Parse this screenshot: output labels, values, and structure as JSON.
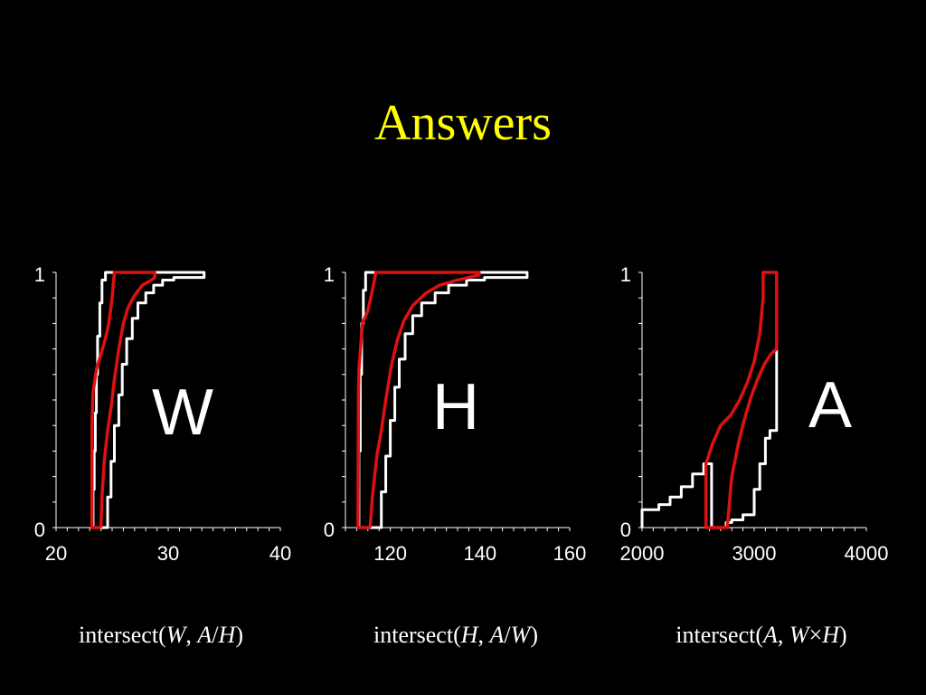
{
  "slide": {
    "title": "Answers",
    "colors": {
      "background": "#000000",
      "title": "#ffff00",
      "cdf": "#ffffff",
      "bounds": "#dd1111"
    }
  },
  "chart_data": [
    {
      "type": "line",
      "big_label": "W",
      "caption": {
        "prefix": "intersect(",
        "arg1": "W",
        "sep1": ", ",
        "arg2a": "A",
        "op": "/",
        "arg2b": "H",
        "suffix": ")"
      },
      "xlim": [
        20,
        40
      ],
      "ylim": [
        0,
        1
      ],
      "x_ticks": [
        "20",
        "30",
        "40"
      ],
      "y_ticks": [
        "0",
        "1"
      ],
      "series": [
        {
          "color": "#ffffff",
          "stepped": true,
          "points": [
            [
              23.3,
              0
            ],
            [
              23.4,
              0.15
            ],
            [
              23.5,
              0.3
            ],
            [
              23.6,
              0.45
            ],
            [
              23.7,
              0.6
            ],
            [
              23.9,
              0.75
            ],
            [
              24.1,
              0.88
            ],
            [
              24.4,
              0.97
            ],
            [
              24.7,
              1.0
            ],
            [
              33.2,
              1.0
            ],
            [
              33.2,
              0.98
            ],
            [
              30.5,
              0.98
            ],
            [
              29.5,
              0.97
            ],
            [
              28.7,
              0.95
            ],
            [
              28.0,
              0.92
            ],
            [
              27.3,
              0.88
            ],
            [
              26.8,
              0.82
            ],
            [
              26.3,
              0.74
            ],
            [
              25.9,
              0.64
            ],
            [
              25.6,
              0.52
            ],
            [
              25.2,
              0.4
            ],
            [
              24.9,
              0.26
            ],
            [
              24.6,
              0.12
            ],
            [
              24.4,
              0.0
            ],
            [
              23.3,
              0
            ]
          ]
        },
        {
          "color": "#dd1111",
          "stepped": false,
          "points": [
            [
              24.0,
              0
            ],
            [
              24.1,
              0.12
            ],
            [
              24.3,
              0.26
            ],
            [
              24.6,
              0.38
            ],
            [
              24.9,
              0.47
            ],
            [
              25.2,
              0.58
            ],
            [
              25.6,
              0.7
            ],
            [
              26.0,
              0.8
            ],
            [
              26.4,
              0.86
            ],
            [
              27.0,
              0.91
            ],
            [
              27.7,
              0.95
            ],
            [
              28.5,
              0.97
            ],
            [
              28.8,
              0.98
            ],
            [
              28.8,
              1.0
            ],
            [
              25.2,
              1.0
            ],
            [
              25.0,
              0.9
            ],
            [
              24.7,
              0.8
            ],
            [
              24.4,
              0.74
            ],
            [
              24.0,
              0.68
            ],
            [
              23.6,
              0.62
            ],
            [
              23.3,
              0.53
            ],
            [
              23.2,
              0.4
            ],
            [
              23.2,
              0.0
            ],
            [
              24.0,
              0
            ]
          ]
        }
      ]
    },
    {
      "type": "line",
      "big_label": "H",
      "caption": {
        "prefix": "intersect(",
        "arg1": "H",
        "sep1": ", ",
        "arg2a": "A",
        "op": "/",
        "arg2b": "W",
        "suffix": ")"
      },
      "xlim": [
        110,
        160
      ],
      "ylim": [
        0,
        1
      ],
      "x_ticks": [
        "120",
        "140",
        "160"
      ],
      "y_ticks": [
        "0",
        "1"
      ],
      "series": [
        {
          "color": "#ffffff",
          "stepped": true,
          "points": [
            [
              113,
              0
            ],
            [
              113.3,
              0.3
            ],
            [
              113.6,
              0.6
            ],
            [
              114.0,
              0.8
            ],
            [
              114.5,
              0.93
            ],
            [
              115.2,
              1.0
            ],
            [
              150.5,
              1.0
            ],
            [
              150.5,
              0.98
            ],
            [
              141,
              0.98
            ],
            [
              137,
              0.97
            ],
            [
              133,
              0.95
            ],
            [
              130,
              0.92
            ],
            [
              127,
              0.88
            ],
            [
              125,
              0.83
            ],
            [
              123.3,
              0.76
            ],
            [
              122,
              0.66
            ],
            [
              121,
              0.55
            ],
            [
              120,
              0.42
            ],
            [
              119,
              0.28
            ],
            [
              118,
              0.14
            ],
            [
              117.5,
              0.0
            ],
            [
              113,
              0
            ]
          ]
        },
        {
          "color": "#dd1111",
          "stepped": false,
          "points": [
            [
              115.5,
              0
            ],
            [
              116,
              0.12
            ],
            [
              117,
              0.28
            ],
            [
              118,
              0.38
            ],
            [
              119,
              0.5
            ],
            [
              120.2,
              0.63
            ],
            [
              121.5,
              0.73
            ],
            [
              123,
              0.81
            ],
            [
              125,
              0.87
            ],
            [
              128,
              0.92
            ],
            [
              131,
              0.95
            ],
            [
              135,
              0.97
            ],
            [
              139.8,
              0.99
            ],
            [
              139.8,
              1.0
            ],
            [
              116.8,
              1.0
            ],
            [
              116,
              0.93
            ],
            [
              115,
              0.85
            ],
            [
              113.8,
              0.8
            ],
            [
              113,
              0.62
            ],
            [
              112.9,
              0.5
            ],
            [
              112.8,
              0.0
            ],
            [
              115.5,
              0
            ]
          ]
        }
      ]
    },
    {
      "type": "line",
      "big_label": "A",
      "caption": {
        "prefix": "intersect(",
        "arg1": "A",
        "sep1": ", ",
        "arg2a": "W",
        "op": "×",
        "arg2b": "H",
        "suffix": ")"
      },
      "xlim": [
        2000,
        4000
      ],
      "ylim": [
        0,
        1
      ],
      "x_ticks": [
        "2000",
        "3000",
        "4000"
      ],
      "y_ticks": [
        "0",
        "1"
      ],
      "series": [
        {
          "color": "#ffffff",
          "stepped": true,
          "points": [
            [
              2000,
              0
            ],
            [
              2000,
              0.06
            ],
            [
              2150,
              0.07
            ],
            [
              2250,
              0.09
            ],
            [
              2350,
              0.12
            ],
            [
              2450,
              0.16
            ],
            [
              2550,
              0.21
            ],
            [
              2620,
              0.25
            ],
            [
              2620,
              0.0
            ],
            [
              2750,
              0.0
            ],
            [
              2750,
              0.01
            ],
            [
              2800,
              0.02
            ],
            [
              2900,
              0.03
            ],
            [
              3000,
              0.05
            ],
            [
              3050,
              0.15
            ],
            [
              3100,
              0.25
            ],
            [
              3140,
              0.35
            ],
            [
              3200,
              0.38
            ],
            [
              3200,
              1.0
            ]
          ]
        },
        {
          "color": "#dd1111",
          "stepped": false,
          "points": [
            [
              2570,
              0
            ],
            [
              2570,
              0.25
            ],
            [
              2630,
              0.33
            ],
            [
              2700,
              0.4
            ],
            [
              2790,
              0.44
            ],
            [
              2870,
              0.5
            ],
            [
              2940,
              0.57
            ],
            [
              3000,
              0.65
            ],
            [
              3050,
              0.76
            ],
            [
              3080,
              0.9
            ],
            [
              3080,
              1.0
            ],
            [
              3200,
              1.0
            ],
            [
              3200,
              0.7
            ],
            [
              3150,
              0.68
            ],
            [
              3090,
              0.64
            ],
            [
              3030,
              0.58
            ],
            [
              2970,
              0.51
            ],
            [
              2910,
              0.42
            ],
            [
              2860,
              0.33
            ],
            [
              2800,
              0.2
            ],
            [
              2760,
              0.0
            ],
            [
              2570,
              0
            ]
          ]
        }
      ]
    }
  ]
}
